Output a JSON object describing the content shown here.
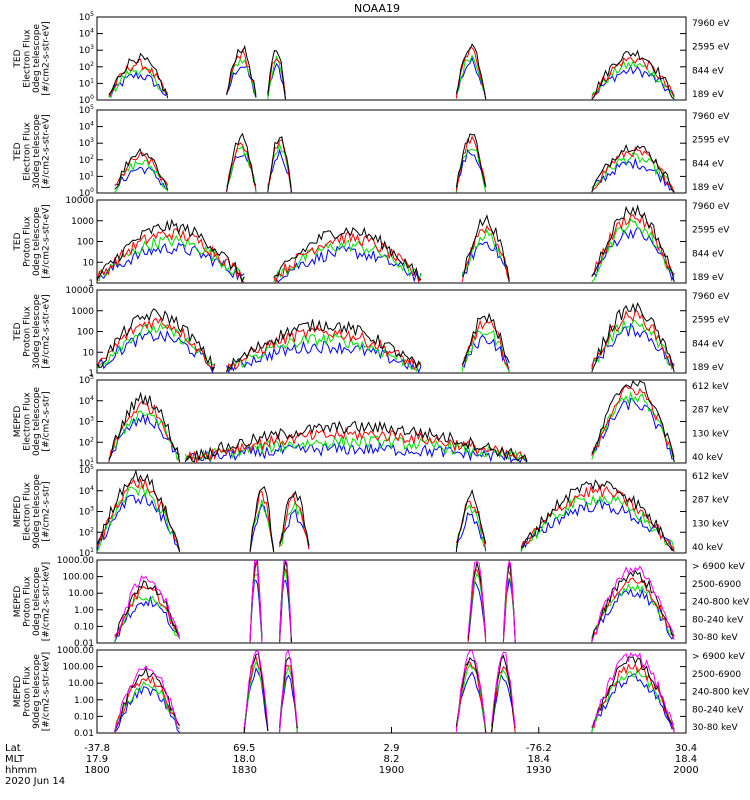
{
  "title": "NOAA19",
  "colors": {
    "black": "#000000",
    "red": "#ff0000",
    "green": "#00dd00",
    "blue": "#0000ff",
    "magenta": "#ff00ff"
  },
  "chart_data": [
    {
      "type": "line",
      "ylabel": [
        "TED",
        "Electron Flux",
        "0deg telescope",
        "[#/cm2-s-str-eV]"
      ],
      "y_scale": "log",
      "ylim": [
        1,
        100000
      ],
      "ytick_labels": [
        "10^0",
        "10^1",
        "10^2",
        "10^3",
        "10^4",
        "10^5"
      ],
      "legend": [
        "7960 eV",
        "2595 eV",
        "844 eV",
        "189 eV"
      ],
      "legend_colors": [
        "black",
        "red",
        "green",
        "blue"
      ],
      "series_profile": [
        [
          0.02,
          0.12,
          2.0
        ],
        [
          0.22,
          0.27,
          2.6
        ],
        [
          0.29,
          0.32,
          2.5
        ],
        [
          0.61,
          0.66,
          2.8
        ],
        [
          0.84,
          0.98,
          2.3
        ]
      ]
    },
    {
      "type": "line",
      "ylabel": [
        "TED",
        "Electron Flux",
        "30deg telescope",
        "[#/cm2-s-str-eV]"
      ],
      "y_scale": "log",
      "ylim": [
        1,
        100000
      ],
      "ytick_labels": [
        "10^0",
        "10^1",
        "10^2",
        "10^3",
        "10^4",
        "10^5"
      ],
      "legend": [
        "7960 eV",
        "2595 eV",
        "844 eV",
        "189 eV"
      ],
      "legend_colors": [
        "black",
        "red",
        "green",
        "blue"
      ],
      "series_profile": [
        [
          0.03,
          0.12,
          2.0
        ],
        [
          0.22,
          0.27,
          2.8
        ],
        [
          0.29,
          0.33,
          2.9
        ],
        [
          0.61,
          0.66,
          3.0
        ],
        [
          0.84,
          0.98,
          2.3
        ]
      ]
    },
    {
      "type": "line",
      "ylabel": [
        "TED",
        "Proton Flux",
        "0deg telescope",
        "[#/cm2-s-str-eV]"
      ],
      "y_scale": "log",
      "ylim": [
        1,
        10000
      ],
      "ytick_labels": [
        "1",
        "10",
        "100",
        "1000",
        "10000"
      ],
      "legend": [
        "7960 eV",
        "2595 eV",
        "844 eV",
        "189 eV"
      ],
      "legend_colors": [
        "black",
        "red",
        "green",
        "blue"
      ],
      "series_profile": [
        [
          0.0,
          0.25,
          2.2
        ],
        [
          0.3,
          0.55,
          2.0
        ],
        [
          0.62,
          0.7,
          2.5
        ],
        [
          0.84,
          0.98,
          3.0
        ]
      ]
    },
    {
      "type": "line",
      "ylabel": [
        "TED",
        "Proton Flux",
        "30deg telescope",
        "[#/cm2-s-str-eV]"
      ],
      "y_scale": "log",
      "ylim": [
        1,
        10000
      ],
      "ytick_labels": [
        "1",
        "10",
        "100",
        "1000",
        "10000"
      ],
      "legend": [
        "7960 eV",
        "2595 eV",
        "844 eV",
        "189 eV"
      ],
      "legend_colors": [
        "black",
        "red",
        "green",
        "blue"
      ],
      "series_profile": [
        [
          0.0,
          0.2,
          2.3
        ],
        [
          0.22,
          0.55,
          1.8
        ],
        [
          0.62,
          0.7,
          2.2
        ],
        [
          0.84,
          0.98,
          2.6
        ]
      ]
    },
    {
      "type": "line",
      "ylabel": [
        "MEPED",
        "Electron Flux",
        "0deg telescope",
        "[#/cm2-s-str]"
      ],
      "y_scale": "log",
      "ylim": [
        10,
        100000
      ],
      "ytick_labels": [
        "10^1",
        "10^2",
        "10^3",
        "10^4",
        "10^5"
      ],
      "legend": [
        "612 keV",
        "287 keV",
        "130 keV",
        "40 keV"
      ],
      "legend_colors": [
        "black",
        "red",
        "green",
        "blue"
      ],
      "series_profile": [
        [
          0.02,
          0.14,
          3.6
        ],
        [
          0.15,
          0.73,
          2.2
        ],
        [
          0.84,
          0.98,
          4.4
        ]
      ]
    },
    {
      "type": "line",
      "ylabel": [
        "MEPED",
        "Electron Flux",
        "90deg telescope",
        "[#/cm2-s-str]"
      ],
      "y_scale": "log",
      "ylim": [
        10,
        100000
      ],
      "ytick_labels": [
        "10^1",
        "10^2",
        "10^3",
        "10^4",
        "10^5"
      ],
      "legend": [
        "612 keV",
        "287 keV",
        "130 keV",
        "40 keV"
      ],
      "legend_colors": [
        "black",
        "red",
        "green",
        "blue"
      ],
      "series_profile": [
        [
          0.0,
          0.14,
          4.2
        ],
        [
          0.26,
          0.3,
          3.6
        ],
        [
          0.31,
          0.36,
          3.4
        ],
        [
          0.61,
          0.66,
          3.3
        ],
        [
          0.72,
          0.98,
          3.8
        ]
      ]
    },
    {
      "type": "line",
      "ylabel": [
        "MEPED",
        "Proton Flux",
        "0deg telescope",
        "[#/cm2-s-str-keV]"
      ],
      "y_scale": "log",
      "ylim": [
        0.01,
        1000
      ],
      "ytick_labels": [
        "0.01",
        "0.10",
        "1.00",
        "10.00",
        "100.00",
        "1000.00"
      ],
      "legend": [
        "> 6900 keV",
        "2500-6900",
        "240-800 keV",
        "80-240 keV",
        "30-80 keV"
      ],
      "legend_colors": [
        "magenta",
        "black",
        "red",
        "green",
        "blue"
      ],
      "series_profile": [
        [
          0.03,
          0.14,
          1.2
        ],
        [
          0.26,
          0.28,
          2.7
        ],
        [
          0.31,
          0.33,
          2.6
        ],
        [
          0.63,
          0.66,
          2.4
        ],
        [
          0.69,
          0.71,
          2.4
        ],
        [
          0.84,
          0.98,
          1.8
        ]
      ]
    },
    {
      "type": "line",
      "ylabel": [
        "MEPED",
        "Proton Flux",
        "90deg telescope",
        "[#/cm2-s-str-keV]"
      ],
      "y_scale": "log",
      "ylim": [
        0.01,
        1000
      ],
      "ytick_labels": [
        "0.01",
        "0.10",
        "1.00",
        "10.00",
        "100.00",
        "1000.00"
      ],
      "legend": [
        "> 6900 keV",
        "2500-6900",
        "240-800 keV",
        "80-240 keV",
        "30-80 keV"
      ],
      "legend_colors": [
        "magenta",
        "black",
        "red",
        "green",
        "blue"
      ],
      "series_profile": [
        [
          0.03,
          0.14,
          1.3
        ],
        [
          0.25,
          0.29,
          2.4
        ],
        [
          0.31,
          0.34,
          2.2
        ],
        [
          0.61,
          0.66,
          2.3
        ],
        [
          0.67,
          0.71,
          2.1
        ],
        [
          0.84,
          0.98,
          2.0
        ]
      ]
    }
  ],
  "x_axis": {
    "row_labels": [
      "Lat",
      "MLT",
      "hhmm"
    ],
    "ticks": [
      {
        "lat": "-37.8",
        "mlt": "17.9",
        "hhmm": "1800"
      },
      {
        "lat": "69.5",
        "mlt": "18.0",
        "hhmm": "1830"
      },
      {
        "lat": "2.9",
        "mlt": "8.2",
        "hhmm": "1900"
      },
      {
        "lat": "-76.2",
        "mlt": "18.4",
        "hhmm": "1930"
      },
      {
        "lat": "30.4",
        "mlt": "18.4",
        "hhmm": "2000"
      }
    ],
    "date": "2020 Jun 14"
  }
}
